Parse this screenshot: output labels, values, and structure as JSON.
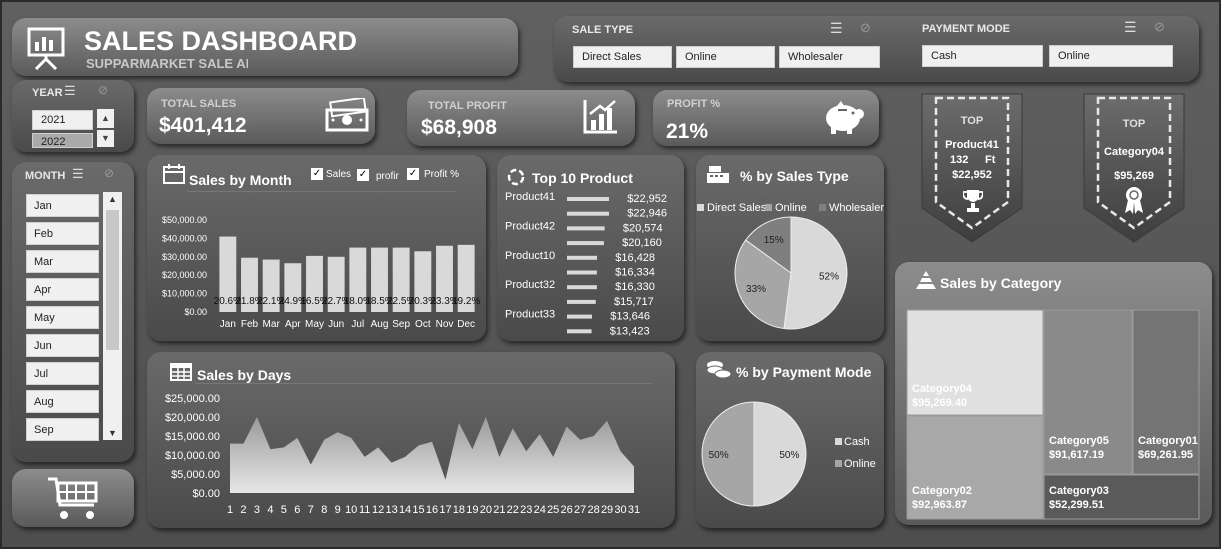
{
  "header": {
    "title": "SALES DASHBOARD",
    "subtitle": "SUPPARMARKET SALE AI"
  },
  "sale_type": {
    "label": "SALE TYPE",
    "options": [
      "Direct Sales",
      "Online",
      "Wholesaler"
    ]
  },
  "payment_mode": {
    "label": "PAYMENT MODE",
    "options": [
      "Cash",
      "Online"
    ]
  },
  "year": {
    "label": "YEAR",
    "options": [
      "2021",
      "2022"
    ]
  },
  "month": {
    "label": "MONTH",
    "options": [
      "Jan",
      "Feb",
      "Mar",
      "Apr",
      "May",
      "Jun",
      "Jul",
      "Aug",
      "Sep"
    ]
  },
  "kpis": {
    "total_sales": {
      "label": "TOTAL SALES",
      "value": "$401,412"
    },
    "total_profit": {
      "label": "TOTAL PROFIT",
      "value": "$68,908"
    },
    "profit_pct": {
      "label": "PROFIT %",
      "value": "21%"
    }
  },
  "top_product": {
    "label": "TOP",
    "name": "Product41",
    "qty": "132",
    "unit": "Ft",
    "value": "$22,952"
  },
  "top_category": {
    "label": "TOP",
    "name": "Category04",
    "value": "$95,269"
  },
  "sales_by_month": {
    "title": "Sales by Month",
    "legend": [
      "Sales",
      "profir",
      "Profit %"
    ],
    "chart_data": {
      "type": "bar",
      "categories": [
        "Jan",
        "Feb",
        "Mar",
        "Apr",
        "May",
        "Jun",
        "Jul",
        "Aug",
        "Sep",
        "Oct",
        "Nov",
        "Dec"
      ],
      "values": [
        41000,
        29500,
        28500,
        26500,
        30500,
        30000,
        35000,
        35000,
        35000,
        33000,
        36000,
        36500
      ],
      "data_labels": [
        "20.6%",
        "21.8%",
        "22.1%",
        "24.9%",
        "16.5%",
        "22.7%",
        "18.0%",
        "18.5%",
        "22.5%",
        "20.3%",
        "23.3%",
        "19.2%"
      ],
      "yticks": [
        "$50,000.00",
        "$40,000.00",
        "$30,000.00",
        "$20,000.00",
        "$10,000.00",
        "$0.00"
      ],
      "ylim": [
        0,
        50000
      ]
    }
  },
  "top_10_product": {
    "title": "Top 10 Product",
    "chart_data": {
      "type": "bar",
      "categories": [
        "Product41",
        "",
        "Product42",
        "",
        "Product10",
        "",
        "Product32",
        "",
        "Product33",
        ""
      ],
      "values": [
        22952,
        22946,
        20574,
        20160,
        16428,
        16334,
        16330,
        15717,
        13646,
        13423
      ],
      "value_labels": [
        "$22,952",
        "$22,946",
        "$20,574",
        "$20,160",
        "$16,428",
        "$16,334",
        "$16,330",
        "$15,717",
        "$13,646",
        "$13,423"
      ]
    }
  },
  "sales_type_pie": {
    "title": "% by Sales Type",
    "chart_data": {
      "type": "pie",
      "labels": [
        "Direct Sales",
        "Online",
        "Wholesaler"
      ],
      "values": [
        52,
        33,
        15
      ],
      "value_labels": [
        "52%",
        "33%",
        "15%"
      ],
      "colors": [
        "#d9d9d9",
        "#a6a6a6",
        "#7f7f7f"
      ]
    }
  },
  "sales_by_days": {
    "title": "Sales by Days",
    "chart_data": {
      "type": "area",
      "x": [
        1,
        2,
        3,
        4,
        5,
        6,
        7,
        8,
        9,
        10,
        11,
        12,
        13,
        14,
        15,
        16,
        17,
        18,
        19,
        20,
        21,
        22,
        23,
        24,
        25,
        26,
        27,
        28,
        29,
        30,
        31
      ],
      "values": [
        13000,
        13000,
        20000,
        11500,
        12000,
        14500,
        7500,
        14000,
        16000,
        14500,
        9500,
        12000,
        8000,
        9500,
        12500,
        13500,
        3500,
        18500,
        11500,
        20000,
        9500,
        17000,
        11000,
        15500,
        9500,
        17500,
        14000,
        15000,
        19000,
        11000,
        7000
      ],
      "yticks": [
        "$25,000.00",
        "$20,000.00",
        "$15,000.00",
        "$10,000.00",
        "$5,000.00",
        "$0.00"
      ],
      "ylim": [
        0,
        25000
      ]
    }
  },
  "payment_pie": {
    "title": "% by Payment Mode",
    "chart_data": {
      "type": "pie",
      "labels": [
        "Cash",
        "Online"
      ],
      "values": [
        50,
        50
      ],
      "value_labels": [
        "50%",
        "50%"
      ],
      "colors": [
        "#d9d9d9",
        "#a6a6a6"
      ]
    }
  },
  "sales_by_category": {
    "title": "Sales by Category",
    "chart_data": {
      "type": "treemap",
      "labels": [
        "Category04",
        "Category02",
        "Category05",
        "Category01",
        "Category03"
      ],
      "values": [
        95269.4,
        92963.87,
        91617.19,
        69261.95,
        52299.51
      ],
      "value_labels": [
        "$95,269.40",
        "$92,963.87",
        "$91,617.19",
        "$69,261.95",
        "$52,299.51"
      ]
    }
  }
}
